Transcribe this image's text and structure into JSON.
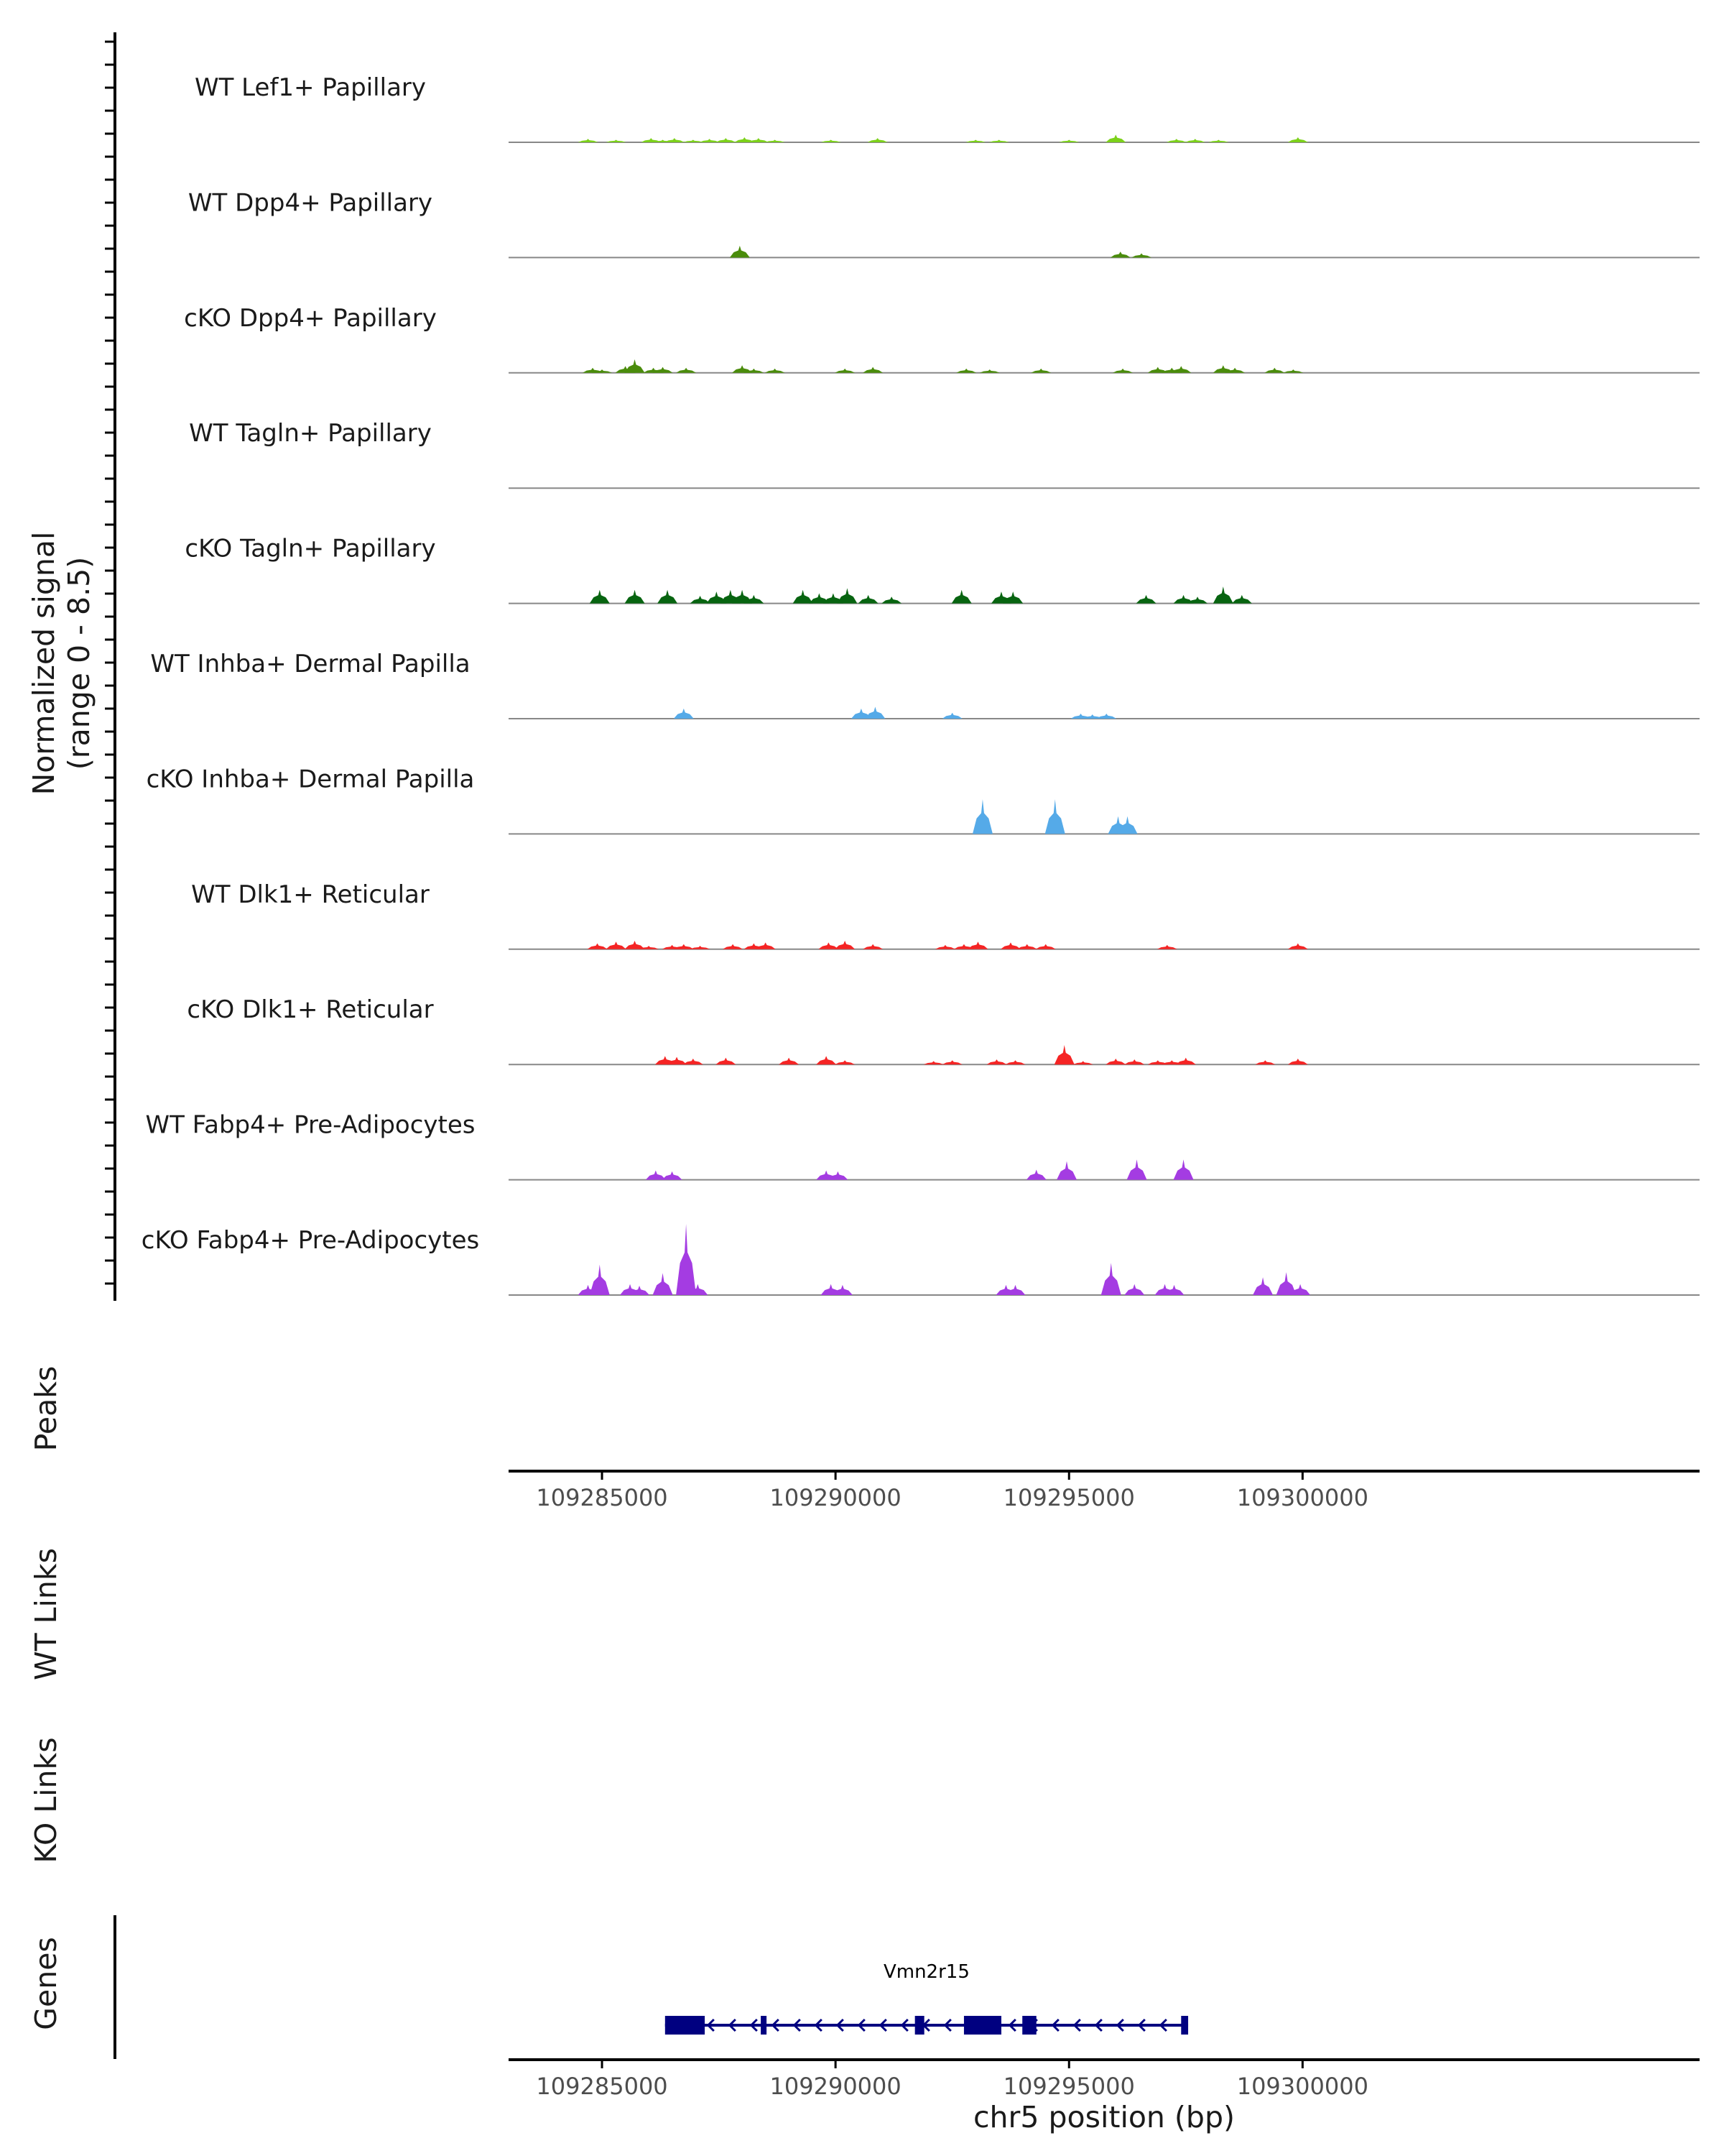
{
  "chart_data": {
    "type": "area",
    "title": "",
    "chromosome": "chr5",
    "xlabel": "chr5 position (bp)",
    "xlim": [
      109283000,
      109308500
    ],
    "ylim": [
      0,
      8.5
    ],
    "ylabel": [
      "Normalized signal",
      "(range 0 - 8.5)"
    ],
    "x_ticks": [
      109285000,
      109290000,
      109295000,
      109300000
    ],
    "x_tick_labels": [
      "109285000",
      "109290000",
      "109295000",
      "109300000"
    ],
    "track_labels": {
      "peaks": "Peaks",
      "wt_links": "WT Links",
      "ko_links": "KO Links",
      "genes": "Genes"
    },
    "series": [
      {
        "name": "WT Lef1+ Papillary",
        "color": "#7cd11a",
        "peaks": [
          [
            109284700,
            0.4
          ],
          [
            109285300,
            0.3
          ],
          [
            109286050,
            0.5
          ],
          [
            109286300,
            0.3
          ],
          [
            109286550,
            0.5
          ],
          [
            109286950,
            0.3
          ],
          [
            109287300,
            0.4
          ],
          [
            109287650,
            0.5
          ],
          [
            109288050,
            0.6
          ],
          [
            109288350,
            0.5
          ],
          [
            109288700,
            0.3
          ],
          [
            109289900,
            0.3
          ],
          [
            109290900,
            0.5
          ],
          [
            109293000,
            0.3
          ],
          [
            109293500,
            0.3
          ],
          [
            109295000,
            0.3
          ],
          [
            109296000,
            0.9
          ],
          [
            109297300,
            0.4
          ],
          [
            109297700,
            0.4
          ],
          [
            109298200,
            0.3
          ],
          [
            109299900,
            0.6
          ]
        ]
      },
      {
        "name": "WT Dpp4+ Papillary",
        "color": "#4a8c0b",
        "peaks": [
          [
            109287950,
            1.4
          ],
          [
            109296100,
            0.7
          ],
          [
            109296550,
            0.5
          ]
        ]
      },
      {
        "name": "cKO Dpp4+ Papillary",
        "color": "#4a8c0b",
        "peaks": [
          [
            109284800,
            0.6
          ],
          [
            109285000,
            0.4
          ],
          [
            109285500,
            0.8
          ],
          [
            109285700,
            1.6
          ],
          [
            109286100,
            0.6
          ],
          [
            109286300,
            0.7
          ],
          [
            109286800,
            0.6
          ],
          [
            109288000,
            0.9
          ],
          [
            109288250,
            0.5
          ],
          [
            109288700,
            0.5
          ],
          [
            109290200,
            0.5
          ],
          [
            109290800,
            0.7
          ],
          [
            109292800,
            0.5
          ],
          [
            109293300,
            0.4
          ],
          [
            109294400,
            0.5
          ],
          [
            109296150,
            0.5
          ],
          [
            109296900,
            0.7
          ],
          [
            109297200,
            0.6
          ],
          [
            109297400,
            0.8
          ],
          [
            109298300,
            0.9
          ],
          [
            109298550,
            0.6
          ],
          [
            109299400,
            0.6
          ],
          [
            109299800,
            0.4
          ]
        ]
      },
      {
        "name": "WT Tagln+ Papillary",
        "color": "#00671f",
        "peaks": []
      },
      {
        "name": "cKO Tagln+ Papillary",
        "color": "#076410",
        "peaks": [
          [
            109284950,
            1.6
          ],
          [
            109285700,
            1.6
          ],
          [
            109286400,
            1.6
          ],
          [
            109287100,
            0.9
          ],
          [
            109287450,
            1.4
          ],
          [
            109287750,
            1.6
          ],
          [
            109288000,
            1.6
          ],
          [
            109288250,
            1.0
          ],
          [
            109289300,
            1.6
          ],
          [
            109289650,
            1.2
          ],
          [
            109289950,
            1.2
          ],
          [
            109290250,
            1.8
          ],
          [
            109290700,
            1.0
          ],
          [
            109291200,
            0.8
          ],
          [
            109292700,
            1.6
          ],
          [
            109293550,
            1.4
          ],
          [
            109293800,
            1.4
          ],
          [
            109296650,
            1.0
          ],
          [
            109297450,
            1.0
          ],
          [
            109297750,
            0.8
          ],
          [
            109298300,
            2.0
          ],
          [
            109298700,
            1.0
          ]
        ]
      },
      {
        "name": "WT Inhba+ Dermal Papilla",
        "color": "#55aae8",
        "peaks": [
          [
            109286750,
            1.2
          ],
          [
            109290550,
            1.2
          ],
          [
            109290850,
            1.4
          ],
          [
            109292500,
            0.7
          ],
          [
            109295250,
            0.6
          ],
          [
            109295500,
            0.5
          ],
          [
            109295800,
            0.6
          ]
        ]
      },
      {
        "name": "cKO Inhba+ Dermal Papilla",
        "color": "#55aae8",
        "peaks": [
          [
            109293150,
            4.1
          ],
          [
            109294700,
            4.1
          ],
          [
            109296050,
            2.1
          ],
          [
            109296250,
            2.1
          ]
        ]
      },
      {
        "name": "WT Dlk1+ Reticular",
        "color": "#f52424",
        "peaks": [
          [
            109284900,
            0.7
          ],
          [
            109285300,
            0.9
          ],
          [
            109285700,
            1.0
          ],
          [
            109286000,
            0.4
          ],
          [
            109286500,
            0.5
          ],
          [
            109286750,
            0.6
          ],
          [
            109287100,
            0.4
          ],
          [
            109287800,
            0.6
          ],
          [
            109288250,
            0.7
          ],
          [
            109288500,
            0.8
          ],
          [
            109289850,
            0.8
          ],
          [
            109290200,
            1.0
          ],
          [
            109290800,
            0.6
          ],
          [
            109292350,
            0.5
          ],
          [
            109292750,
            0.6
          ],
          [
            109293050,
            0.9
          ],
          [
            109293750,
            0.8
          ],
          [
            109294100,
            0.6
          ],
          [
            109294500,
            0.6
          ],
          [
            109297100,
            0.5
          ],
          [
            109299900,
            0.7
          ]
        ]
      },
      {
        "name": "cKO Dlk1+ Reticular",
        "color": "#f52424",
        "peaks": [
          [
            109286350,
            1.0
          ],
          [
            109286600,
            0.9
          ],
          [
            109286950,
            0.7
          ],
          [
            109287650,
            0.8
          ],
          [
            109289000,
            0.8
          ],
          [
            109289800,
            1.0
          ],
          [
            109290200,
            0.5
          ],
          [
            109292100,
            0.4
          ],
          [
            109292500,
            0.5
          ],
          [
            109293450,
            0.6
          ],
          [
            109293850,
            0.5
          ],
          [
            109294900,
            2.3
          ],
          [
            109295300,
            0.4
          ],
          [
            109296000,
            0.7
          ],
          [
            109296400,
            0.6
          ],
          [
            109296900,
            0.5
          ],
          [
            109297200,
            0.5
          ],
          [
            109297500,
            0.8
          ],
          [
            109299200,
            0.5
          ],
          [
            109299900,
            0.7
          ]
        ]
      },
      {
        "name": "WT Fabp4+ Pre-Adipocytes",
        "color": "#a43ce2",
        "peaks": [
          [
            109286150,
            1.1
          ],
          [
            109286500,
            1.0
          ],
          [
            109289800,
            1.1
          ],
          [
            109290050,
            1.0
          ],
          [
            109294300,
            1.2
          ],
          [
            109294950,
            2.2
          ],
          [
            109296450,
            2.4
          ],
          [
            109297450,
            2.4
          ]
        ]
      },
      {
        "name": "cKO Fabp4+ Pre-Adipocytes",
        "color": "#a43ce2",
        "peaks": [
          [
            109284700,
            1.2
          ],
          [
            109284950,
            3.6
          ],
          [
            109285600,
            1.3
          ],
          [
            109285800,
            1.1
          ],
          [
            109286300,
            2.6
          ],
          [
            109286800,
            8.4
          ],
          [
            109287050,
            1.3
          ],
          [
            109289900,
            1.3
          ],
          [
            109290150,
            1.2
          ],
          [
            109293650,
            1.2
          ],
          [
            109293850,
            1.2
          ],
          [
            109295900,
            3.8
          ],
          [
            109296400,
            1.3
          ],
          [
            109297050,
            1.3
          ],
          [
            109297250,
            1.2
          ],
          [
            109299150,
            2.1
          ],
          [
            109299650,
            2.7
          ],
          [
            109299950,
            1.3
          ]
        ]
      }
    ],
    "gene": {
      "name": "Vmn2r15",
      "color": "#000080",
      "strand": "-",
      "start": 109286350,
      "end": 109297550,
      "exons": [
        [
          109286350,
          109287200
        ],
        [
          109288400,
          109288500
        ],
        [
          109291700,
          109291900
        ],
        [
          109292750,
          109293550
        ],
        [
          109294000,
          109294300
        ],
        [
          109297400,
          109297550
        ]
      ]
    }
  }
}
